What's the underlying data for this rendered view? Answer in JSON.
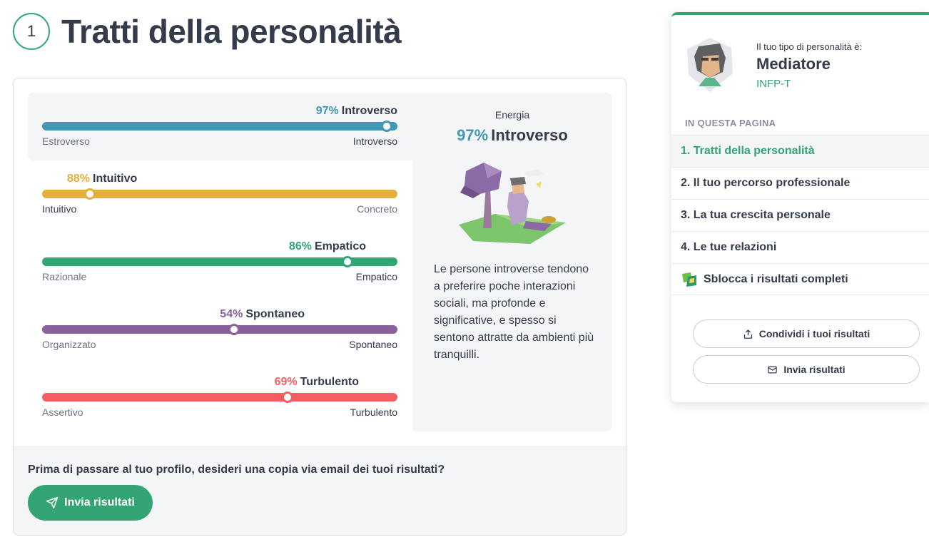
{
  "header": {
    "step": "1",
    "title": "Tratti della personalità"
  },
  "traits": [
    {
      "percent": "97%",
      "name": "Introverso",
      "left": "Estroverso",
      "right": "Introverso",
      "value": 97,
      "side": "right",
      "color": "#4298b4"
    },
    {
      "percent": "88%",
      "name": "Intuitivo",
      "left": "Intuitivo",
      "right": "Concreto",
      "value": 88,
      "side": "left",
      "color": "#e4ae3a"
    },
    {
      "percent": "86%",
      "name": "Empatico",
      "left": "Razionale",
      "right": "Empatico",
      "value": 86,
      "side": "right",
      "color": "#33a474"
    },
    {
      "percent": "54%",
      "name": "Spontaneo",
      "left": "Organizzato",
      "right": "Spontaneo",
      "value": 54,
      "side": "right",
      "color": "#88619a"
    },
    {
      "percent": "69%",
      "name": "Turbulento",
      "left": "Assertivo",
      "right": "Turbulento",
      "value": 69,
      "side": "right",
      "color": "#f25e62"
    }
  ],
  "detail": {
    "eyebrow": "Energia",
    "percent": "97%",
    "name": "Introverso",
    "text": "Le persone introverse tendono a preferire poche interazioni sociali, ma profonde e significative, e spesso si sentono attratte da ambienti più tranquilli."
  },
  "footer": {
    "question": "Prima di passare al tuo profilo, desideri una copia via email dei tuoi risultati?",
    "button": "Invia risultati"
  },
  "sidebar": {
    "eyebrow": "Il tuo tipo di personalità è:",
    "type_name": "Mediatore",
    "type_code": "INFP-T",
    "toc_heading": "IN QUESTA PAGINA",
    "toc": [
      "1. Tratti della personalità",
      "2. Il tuo percorso professionale",
      "3. La tua crescita personale",
      "4. Le tue relazioni"
    ],
    "unlock": "Sblocca i risultati completi",
    "share_button": "Condividi i tuoi risultati",
    "send_button": "Invia risultati"
  },
  "colors": {
    "accent": "#33a474",
    "text": "#343c4b",
    "muted": "#8a9099"
  }
}
